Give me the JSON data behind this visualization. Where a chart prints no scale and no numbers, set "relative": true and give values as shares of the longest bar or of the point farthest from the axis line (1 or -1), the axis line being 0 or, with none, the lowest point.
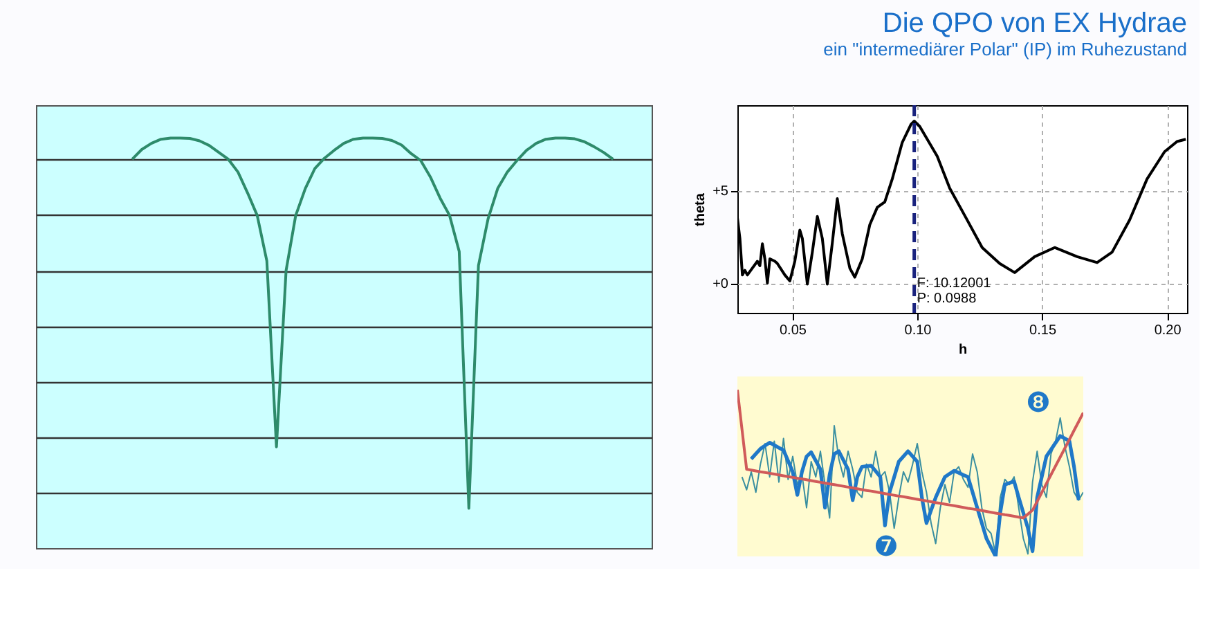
{
  "chart_data": [
    {
      "type": "line",
      "relative": true,
      "grid": "y",
      "categories": [
        null,
        null,
        null,
        null,
        null,
        null,
        null,
        null,
        null,
        null,
        null,
        null,
        null,
        null,
        null,
        null,
        null,
        null,
        null,
        null,
        null,
        null,
        null,
        null,
        null,
        null,
        null,
        null,
        null,
        null,
        null,
        null,
        null,
        null,
        null,
        null,
        null,
        null,
        null,
        null,
        null,
        null,
        null,
        null,
        null,
        null,
        null,
        null,
        null,
        null,
        null,
        null,
        null,
        null,
        null,
        null,
        null,
        null,
        null,
        null,
        null,
        null,
        null,
        null,
        null
      ],
      "series": [
        {
          "color": "#2e8b6b",
          "values": [
            null,
            null,
            null,
            null,
            null,
            null,
            null,
            null,
            null,
            null,
            0.948,
            0.972,
            0.987,
            0.997,
            1.0,
            1.0,
            0.999,
            0.993,
            0.982,
            0.965,
            0.948,
            0.917,
            0.866,
            0.811,
            0.7,
            0.247,
            0.677,
            0.811,
            0.877,
            0.926,
            0.951,
            0.97,
            0.987,
            0.997,
            1.0,
            1.0,
            0.999,
            0.994,
            0.983,
            0.962,
            0.945,
            0.905,
            0.854,
            0.811,
            0.723,
            0.097,
            0.689,
            0.803,
            0.877,
            0.917,
            0.945,
            0.97,
            0.987,
            0.997,
            1.0,
            1.0,
            0.998,
            0.991,
            0.979,
            0.965,
            0.948,
            null,
            null,
            null,
            null
          ]
        }
      ]
    },
    {
      "type": "line",
      "title": "Die QPO von EX Hydrae",
      "subtitle": "ein \"intermediärer Polar\" (IP) im Ruhezustand",
      "xlabel": "h",
      "ylabel": "theta",
      "grid": true,
      "xlim": [
        0.028,
        0.208
      ],
      "ylim": [
        -1.6,
        9.6
      ],
      "xticks": [
        0.05,
        {
          "value": 0.1,
          "label": "0.10"
        },
        0.15,
        {
          "value": 0.2,
          "label": "0.20"
        }
      ],
      "yticks": [
        {
          "value": 0,
          "label": "+0"
        },
        {
          "value": 5,
          "label": "+5"
        }
      ],
      "series": [
        {
          "color": "#000000",
          "x": [
            0.028,
            0.029,
            0.03,
            0.031,
            0.032,
            0.034,
            0.036,
            0.037,
            0.038,
            0.039,
            0.04,
            0.041,
            0.043,
            0.044,
            0.047,
            0.049,
            0.051,
            0.053,
            0.054,
            0.056,
            0.058,
            0.06,
            0.062,
            0.064,
            0.066,
            0.068,
            0.07,
            0.073,
            0.075,
            0.078,
            0.081,
            0.084,
            0.087,
            0.09,
            0.094,
            0.0975,
            0.0988,
            0.101,
            0.108,
            0.113,
            0.119,
            0.126,
            0.133,
            0.139,
            0.147,
            0.155,
            0.164,
            0.172,
            0.178,
            0.185,
            0.192,
            0.199,
            0.204,
            0.2075
          ],
          "values": [
            3.52,
            2.41,
            0.44,
            0.69,
            0.44,
            0.81,
            1.18,
            0.94,
            2.12,
            1.31,
            0,
            1.31,
            1.18,
            1.06,
            0.44,
            0.12,
            1.18,
            2.86,
            2.41,
            -0.05,
            1.67,
            3.6,
            2.41,
            -0.05,
            2.17,
            4.56,
            2.66,
            0.81,
            0.32,
            1.31,
            3.15,
            4.09,
            4.38,
            5.62,
            7.59,
            8.57,
            8.74,
            8.45,
            6.85,
            5.12,
            3.65,
            1.92,
            1.06,
            0.57,
            1.43,
            1.92,
            1.43,
            1.11,
            1.67,
            3.4,
            5.62,
            7.09,
            7.64,
            7.76
          ]
        }
      ],
      "ref_lines": [
        {
          "axis": "x",
          "value": 0.0988,
          "color": "#1a237e",
          "line_style": "dashed"
        }
      ],
      "annotations": [
        {
          "text": "F: 10.12001",
          "x": 0.0988,
          "y": 0
        },
        {
          "text": "P: 0.0988",
          "x": 0.0988,
          "y": -0.8
        }
      ]
    },
    {
      "type": "line",
      "relative": true,
      "categories": [
        null,
        null,
        null,
        null,
        null,
        null,
        null,
        null,
        null,
        null,
        null,
        null,
        null,
        null,
        null,
        null,
        null,
        null,
        null,
        null,
        null,
        null,
        null,
        null,
        null,
        null,
        null,
        null,
        null,
        null,
        null,
        null,
        null,
        null,
        null,
        null,
        null,
        null,
        null,
        null,
        null,
        null,
        null,
        null,
        null,
        null,
        null,
        null,
        null,
        null,
        null,
        null,
        null,
        null,
        null,
        null,
        null,
        null,
        null,
        null,
        null,
        null,
        null,
        null,
        null,
        null,
        null,
        null,
        null,
        null,
        null,
        null,
        null,
        null,
        null,
        null
      ],
      "series": [
        {
          "color": "#3a8fa0",
          "values": [
            null,
            0.477,
            0.4,
            0.508,
            0.385,
            0.554,
            0.677,
            0.477,
            0.692,
            0.446,
            0.708,
            0.462,
            0.6,
            0.431,
            0.492,
            0.292,
            0.569,
            0.477,
            0.631,
            0.431,
            0.231,
            0.785,
            0.585,
            0.477,
            0.631,
            0.523,
            0.385,
            0.354,
            0.554,
            0.477,
            0.631,
            0.477,
            0.508,
            0.385,
            0.169,
            0.354,
            0.508,
            0.446,
            0.554,
            0.677,
            0.508,
            0.385,
            0.2,
            0.077,
            0.292,
            0.431,
            0.323,
            0.508,
            0.538,
            0.462,
            0.415,
            0.615,
            0.508,
            0.292,
            0.169,
            0.138,
            0.015,
            0.354,
            0.462,
            0.431,
            0.477,
            0.292,
            0.108,
            0.015,
            0.446,
            0.631,
            0.431,
            0.354,
            0.615,
            0.692,
            0.831,
            0.662,
            0.538,
            0.385,
            0.338,
            0.385
          ]
        },
        {
          "color": "#1f78c8",
          "values": [
            null,
            null,
            null,
            0.585,
            0.616,
            0.646,
            0.665,
            0.683,
            0.668,
            0.652,
            0.637,
            0.573,
            0.508,
            0.369,
            0.508,
            0.6,
            0.625,
            0.574,
            0.523,
            0.292,
            0.492,
            0.615,
            0.631,
            0.577,
            0.523,
            0.338,
            0.477,
            0.538,
            0.542,
            0.545,
            0.511,
            0.477,
            0.185,
            0.385,
            0.477,
            0.569,
            0.6,
            0.631,
            0.6,
            0.569,
            0.354,
            0.2,
            0.277,
            0.354,
            0.416,
            0.477,
            0.496,
            0.514,
            0.502,
            0.489,
            0.477,
            0.385,
            0.292,
            0.2,
            0.108,
            0.054,
            0,
            0.262,
            0.431,
            0.441,
            0.451,
            0.354,
            0.262,
            0.169,
            0.031,
            0.354,
            0.477,
            0.6,
            0.641,
            0.682,
            0.723,
            0.708,
            0.692,
            0.538,
            0.338,
            null
          ]
        },
        {
          "color": "#d05a5a",
          "values": [
            1.0,
            0.762,
            0.523,
            0.518,
            0.513,
            0.508,
            0.504,
            0.499,
            0.494,
            0.489,
            0.484,
            0.479,
            0.474,
            0.469,
            0.465,
            0.46,
            0.455,
            0.45,
            0.445,
            0.44,
            0.435,
            0.431,
            0.426,
            0.421,
            0.416,
            0.411,
            0.406,
            0.401,
            0.396,
            0.392,
            0.387,
            0.382,
            0.377,
            0.372,
            0.367,
            0.362,
            0.358,
            0.353,
            0.348,
            0.343,
            0.338,
            0.333,
            0.328,
            0.323,
            0.319,
            0.314,
            0.309,
            0.304,
            0.299,
            0.294,
            0.289,
            0.285,
            0.28,
            0.275,
            0.27,
            0.265,
            0.26,
            0.255,
            0.25,
            0.246,
            0.241,
            0.236,
            0.231,
            0.254,
            0.277,
            0.33,
            0.383,
            0.437,
            0.49,
            0.543,
            0.596,
            0.649,
            0.702,
            0.756,
            0.809,
            0.862
          ]
        }
      ],
      "annotations": [
        "❼",
        "❽"
      ]
    }
  ]
}
